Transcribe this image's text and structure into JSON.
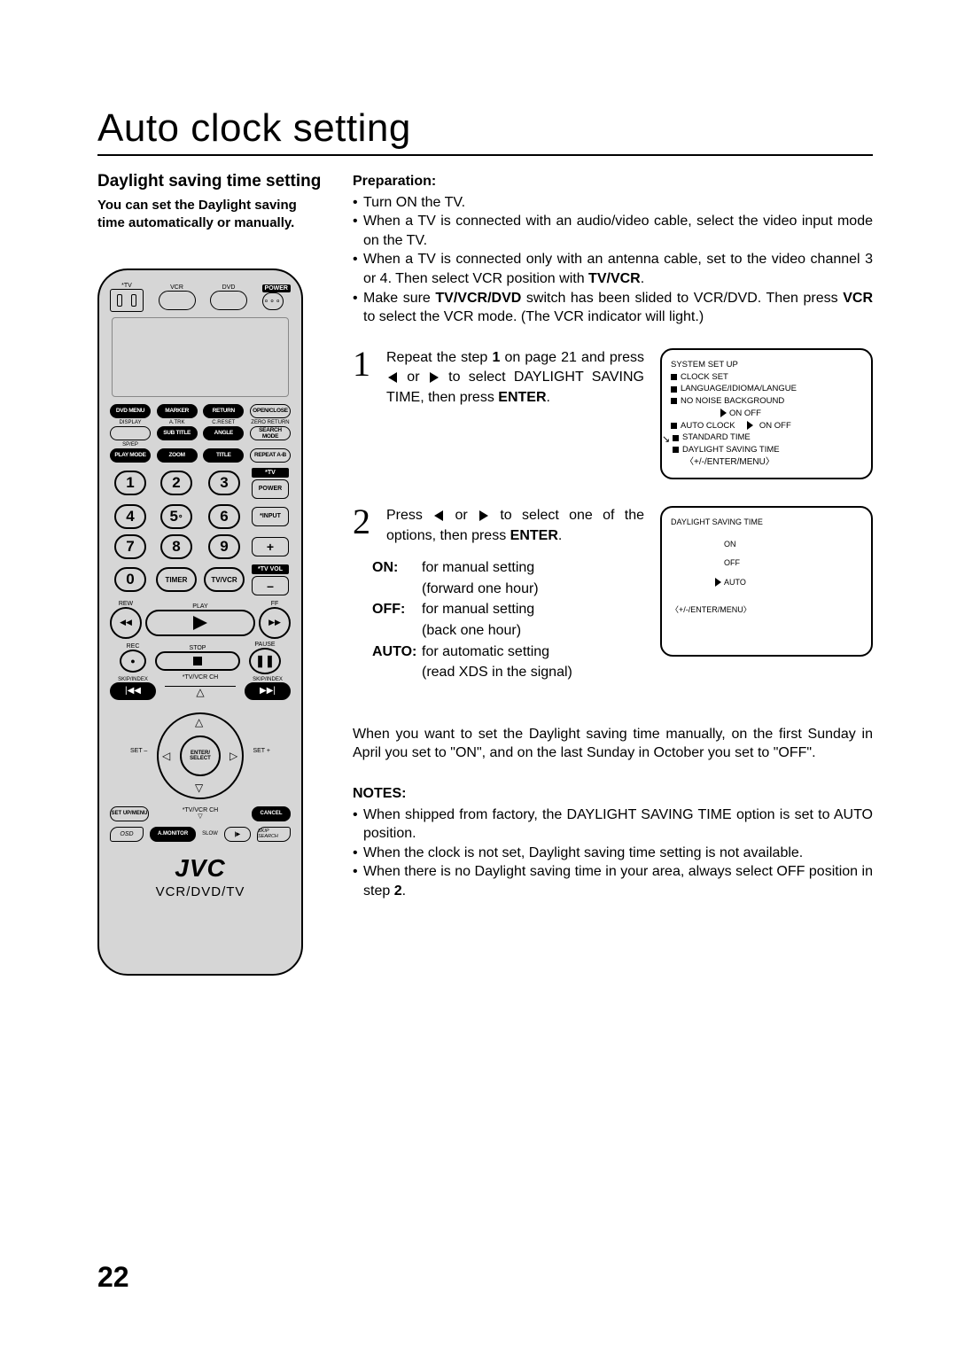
{
  "page": {
    "title": "Auto clock setting",
    "number": "22"
  },
  "left": {
    "subhead": "Daylight saving time setting",
    "intro1": "You can set the Daylight saving",
    "intro2": "time automatically or manually."
  },
  "remote": {
    "toplabels": {
      "tv": "*TV",
      "vcr": "VCR",
      "dvd": "DVD",
      "power": "POWER"
    },
    "fn": {
      "r1": [
        "DVD MENU",
        "MARKER",
        "RETURN",
        "OPEN/CLOSE"
      ],
      "cap2": [
        "DISPLAY",
        "A.TRK",
        "C.RESET",
        "ZERO RETURN"
      ],
      "r2": [
        "",
        "SUB TITLE",
        "ANGLE",
        "SEARCH MODE"
      ],
      "cap3": [
        "SP/EP",
        "",
        "",
        ""
      ],
      "r3": [
        "PLAY MODE",
        "ZOOM",
        "TITLE",
        "REPEAT A-B"
      ]
    },
    "side": {
      "tv": "*TV",
      "power": "POWER",
      "input": "*INPUT",
      "plus": "+",
      "tvvol": "*TV VOL",
      "minus": "–"
    },
    "num": [
      "1",
      "2",
      "3",
      "4",
      "5",
      "6",
      "7",
      "8",
      "9",
      "0"
    ],
    "timer": "TIMER",
    "tvvcr": "TV/VCR",
    "trans": {
      "rew": "REW",
      "play": "PLAY",
      "ff": "FF",
      "rec": "REC",
      "stop": "STOP",
      "pause": "PAUSE",
      "skipL": "SKIP/INDEX",
      "chlabel": "*TV/VCR CH",
      "skipR": "SKIP/INDEX"
    },
    "dpad": {
      "enter": "ENTER/",
      "select": "SELECT",
      "setm": "SET –",
      "setp": "SET +"
    },
    "bottom": {
      "setup": "SET UP/MENU",
      "cancel": "CANCEL",
      "osd": "OSD",
      "amon": "A.MONITOR",
      "slow": "SLOW",
      "skips": "SKIP SEARCH",
      "ch": "*TV/VCR CH"
    },
    "brand": "JVC",
    "sub": "VCR/DVD/TV"
  },
  "right": {
    "prepHdr": "Preparation:",
    "prep": [
      "Turn ON the TV.",
      "When a TV is connected with an audio/video cable, select the video input mode on the TV.",
      "When a TV is connected only with an antenna cable, set to the video channel 3 or 4. Then select VCR position with <b>TV/VCR</b>.",
      "Make sure <b>TV/VCR/DVD</b> switch has been slided to VCR/DVD. Then press <b>VCR</b> to select the VCR mode. (The VCR indicator will light.)"
    ],
    "step1a": "Repeat the step ",
    "step1b": " on page 21 and press ",
    "step1c": " or ",
    "step1d": " to select DAYLIGHT SAVING TIME, then press ",
    "step1bold1": "1",
    "step1bold2": "ENTER",
    "step1e": ".",
    "step2a": "Press ",
    "step2b": " or ",
    "step2c": " to select one of the options, then press ",
    "step2bold": "ENTER",
    "step2d": ".",
    "opts": {
      "on": {
        "k": "ON:",
        "v1": "for manual setting",
        "v2": "(forward one hour)"
      },
      "off": {
        "k": "OFF:",
        "v1": "for manual setting",
        "v2": "(back one hour)"
      },
      "auto": {
        "k": "AUTO:",
        "v1": "for automatic setting",
        "v2": "(read XDS in the signal)"
      }
    },
    "foot": "When you want to set the Daylight saving time manually, on the first Sunday in April you set to \"ON\", and on the last Sunday in October you set to \"OFF\".",
    "notesHdr": "NOTES:",
    "notes": [
      "When shipped from factory, the DAYLIGHT SAVING TIME option is set to AUTO position.",
      "When the clock is not set, Daylight saving time setting is not available.",
      "When there is no Daylight saving time in your area, always select OFF position in step <b>2</b>."
    ]
  },
  "osd1": {
    "title": "SYSTEM SET UP",
    "l1": "CLOCK SET",
    "l2": "LANGUAGE/IDIOMA/LANGUE",
    "l3": "NO NOISE BACKGROUND",
    "l3b": "ON    OFF",
    "l4": "AUTO CLOCK",
    "l4b": "ON    OFF",
    "l5": "STANDARD TIME",
    "l6": "DAYLIGHT SAVING TIME",
    "nav": "〈+/-/ENTER/MENU〉"
  },
  "osd2": {
    "title": "DAYLIGHT  SAVING  TIME",
    "on": "ON",
    "off": "OFF",
    "auto": "AUTO",
    "nav": "〈+/-/ENTER/MENU〉"
  }
}
